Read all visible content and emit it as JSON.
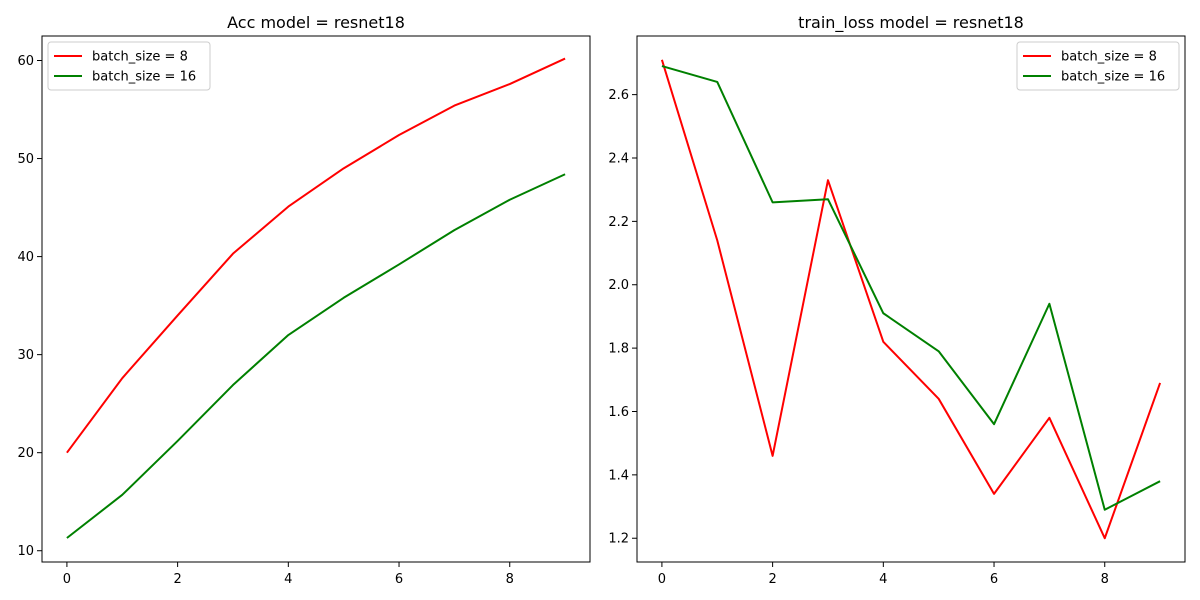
{
  "chart_data": [
    {
      "type": "line",
      "title": "Acc model = resnet18",
      "xlabel": "",
      "ylabel": "",
      "x": [
        0,
        1,
        2,
        3,
        4,
        5,
        6,
        7,
        8,
        9
      ],
      "xlim": [
        -0.45,
        9.45
      ],
      "ylim": [
        8.85,
        62.5
      ],
      "xticks": [
        0,
        2,
        4,
        6,
        8
      ],
      "yticks": [
        10,
        20,
        30,
        40,
        50,
        60
      ],
      "grid": false,
      "legend": "upper-left",
      "series": [
        {
          "name": "batch_size = 8",
          "color": "#ff0000",
          "values": [
            20.0,
            27.6,
            34.0,
            40.3,
            45.1,
            49.0,
            52.4,
            55.4,
            57.6,
            60.2
          ]
        },
        {
          "name": "batch_size = 16",
          "color": "#008000",
          "values": [
            11.3,
            15.7,
            21.2,
            26.9,
            32.0,
            35.8,
            39.2,
            42.7,
            45.8,
            48.4
          ]
        }
      ]
    },
    {
      "type": "line",
      "title": "train_loss model = resnet18",
      "xlabel": "",
      "ylabel": "",
      "x": [
        0,
        1,
        2,
        3,
        4,
        5,
        6,
        7,
        8,
        9
      ],
      "xlim": [
        -0.45,
        9.45
      ],
      "ylim": [
        1.125,
        2.785
      ],
      "xticks": [
        0,
        2,
        4,
        6,
        8
      ],
      "yticks": [
        1.2,
        1.4,
        1.6,
        1.8,
        2.0,
        2.2,
        2.4,
        2.6
      ],
      "yticklabels": [
        "1.2",
        "1.4",
        "1.6",
        "1.8",
        "2.0",
        "2.2",
        "2.4",
        "2.6"
      ],
      "grid": false,
      "legend": "upper-right",
      "series": [
        {
          "name": "batch_size = 8",
          "color": "#ff0000",
          "values": [
            2.71,
            2.14,
            1.46,
            2.33,
            1.82,
            1.64,
            1.34,
            1.58,
            1.2,
            1.69
          ]
        },
        {
          "name": "batch_size = 16",
          "color": "#008000",
          "values": [
            2.69,
            2.64,
            2.26,
            2.27,
            1.91,
            1.79,
            1.56,
            1.94,
            1.29,
            1.38
          ]
        }
      ]
    }
  ]
}
